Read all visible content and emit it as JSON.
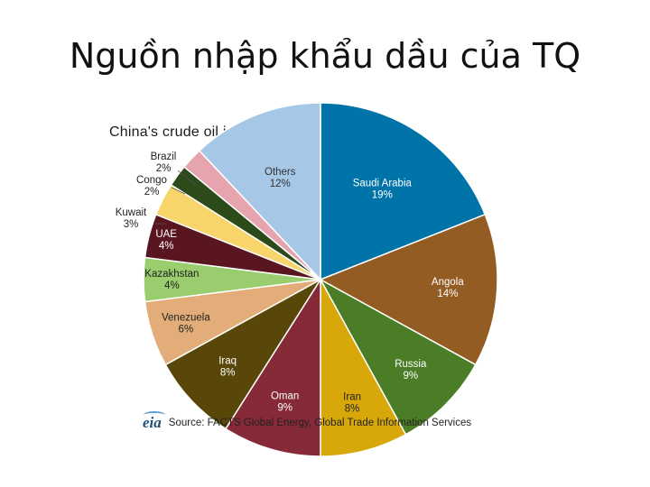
{
  "slide": {
    "title": "Nguồn nhập khẩu dầu của TQ"
  },
  "source": {
    "logo_text": "eia",
    "text": "Source: FACTS Global Energy, Global Trade Information Services"
  },
  "chart_data": {
    "type": "pie",
    "title": "China's crude oil imports by source, 2013",
    "legend": "none",
    "slices": [
      {
        "label": "Saudi Arabia",
        "value_label": "19%",
        "value": 19,
        "color": "#0073a8",
        "text_color": "#ffffff"
      },
      {
        "label": "Angola",
        "value_label": "14%",
        "value": 14,
        "color": "#935c22",
        "text_color": "#ffffff"
      },
      {
        "label": "Russia",
        "value_label": "9%",
        "value": 9,
        "color": "#4a7d26",
        "text_color": "#ffffff"
      },
      {
        "label": "Iran",
        "value_label": "8%",
        "value": 8,
        "color": "#d8a80a",
        "text_color": "#222222"
      },
      {
        "label": "Oman",
        "value_label": "9%",
        "value": 9,
        "color": "#852a36",
        "text_color": "#ffffff"
      },
      {
        "label": "Iraq",
        "value_label": "8%",
        "value": 8,
        "color": "#584709",
        "text_color": "#ffffff"
      },
      {
        "label": "Venezuela",
        "value_label": "6%",
        "value": 6,
        "color": "#e2ad79",
        "text_color": "#222222"
      },
      {
        "label": "Kazakhstan",
        "value_label": "4%",
        "value": 4,
        "color": "#9acd6e",
        "text_color": "#222222"
      },
      {
        "label": "UAE",
        "value_label": "4%",
        "value": 4,
        "color": "#5a1620",
        "text_color": "#ffffff"
      },
      {
        "label": "Kuwait",
        "value_label": "3%",
        "value": 3,
        "color": "#f7d56a",
        "text_color": "#222222"
      },
      {
        "label": "Congo",
        "value_label": "2%",
        "value": 2,
        "color": "#2c4a1a",
        "text_color": "#222222"
      },
      {
        "label": "Brazil",
        "value_label": "2%",
        "value": 2,
        "color": "#e6a4ae",
        "text_color": "#222222"
      },
      {
        "label": "Others",
        "value_label": "12%",
        "value": 12,
        "color": "#a7c7e7",
        "text_color": "#333333"
      }
    ]
  }
}
